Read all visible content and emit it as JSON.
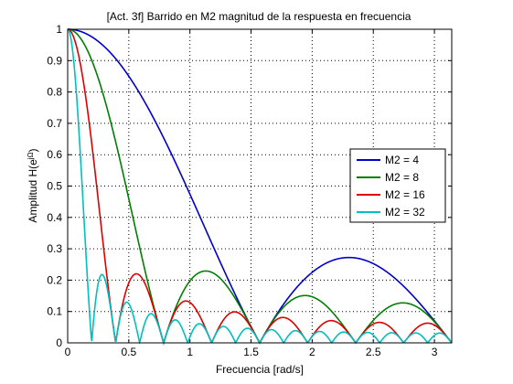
{
  "chart_data": {
    "type": "line",
    "title": "[Act. 3f] Barrido en M2 magnitud de la respuesta en frecuencia",
    "xlabel": "Frecuencia [rad/s]",
    "ylabel_main": "Amplitud H(e",
    "ylabel_sup": "jΩ",
    "ylabel_end": ")",
    "xlim": [
      0,
      3.14159
    ],
    "ylim": [
      0,
      1
    ],
    "xticks": [
      0,
      0.5,
      1,
      1.5,
      2,
      2.5,
      3
    ],
    "xtick_labels": [
      "0",
      "0.5",
      "1",
      "1.5",
      "2",
      "2.5",
      "3"
    ],
    "yticks": [
      0,
      0.1,
      0.2,
      0.3,
      0.4,
      0.5,
      0.6,
      0.7,
      0.8,
      0.9,
      1
    ],
    "ytick_labels": [
      "0",
      "0.1",
      "0.2",
      "0.3",
      "0.4",
      "0.5",
      "0.6",
      "0.7",
      "0.8",
      "0.9",
      "1"
    ],
    "grid": true,
    "legend_position": "right",
    "series": [
      {
        "name": "M2 = 4",
        "M": 4,
        "color": "#0000cc"
      },
      {
        "name": "M2 = 8",
        "M": 8,
        "color": "#007f00"
      },
      {
        "name": "M2 = 16",
        "M": 16,
        "color": "#dd0000"
      },
      {
        "name": "M2 = 32",
        "M": 32,
        "color": "#00bfbf"
      }
    ]
  }
}
